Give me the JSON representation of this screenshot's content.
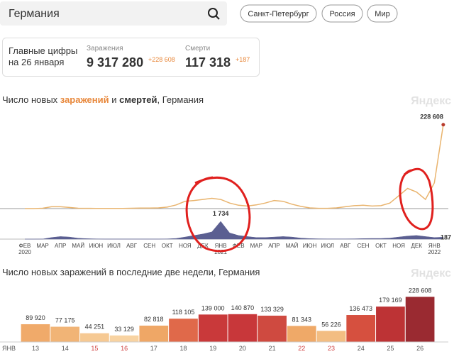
{
  "search": {
    "query": "Германия"
  },
  "regions": [
    "Санкт-Петербург",
    "Россия",
    "Мир"
  ],
  "summary": {
    "title_lines": [
      "Главные цифры",
      "на 26 января"
    ],
    "cases": {
      "label": "Заражения",
      "total": "9 317 280",
      "delta": "+228 608"
    },
    "deaths": {
      "label": "Смерти",
      "total": "117 318",
      "delta": "+187"
    }
  },
  "watermark": "Яндекс",
  "chart_data": [
    {
      "type": "line",
      "title_parts": [
        "Число новых ",
        " и ",
        ", Германия"
      ],
      "categories": [
        "ФЕВ 2020",
        null,
        "МАР",
        null,
        "АПР",
        null,
        "МАЙ",
        null,
        "ИЮН",
        null,
        "ИЮЛ",
        null,
        "АВГ",
        null,
        "СЕН",
        null,
        "ОКТ",
        null,
        "НОЯ",
        null,
        "ДЕК",
        null,
        "ЯНВ 2021",
        null,
        "ФЕВ",
        null,
        "МАР",
        null,
        "АПР",
        null,
        "МАЙ",
        null,
        "ИЮН",
        null,
        "ИЮЛ",
        null,
        "АВГ",
        null,
        "СЕН",
        null,
        "ОКТ",
        null,
        "НОЯ",
        null,
        "ДЕК",
        null,
        "ЯНВ 2022",
        null
      ],
      "ylim": [
        0,
        230000
      ],
      "y2lim": [
        0,
        1800
      ],
      "series": [
        {
          "name": "заражений",
          "color": "#e9b46e",
          "values": [
            0,
            0,
            1000,
            5000,
            5000,
            3000,
            1000,
            700,
            500,
            500,
            400,
            600,
            1000,
            1500,
            1500,
            2000,
            4000,
            10000,
            20000,
            22000,
            25000,
            28000,
            25000,
            15000,
            9000,
            7000,
            10000,
            15000,
            22000,
            20000,
            12000,
            6000,
            2000,
            800,
            800,
            2000,
            5000,
            8000,
            9000,
            7000,
            8000,
            15000,
            35000,
            55000,
            45000,
            25000,
            70000,
            228608
          ],
          "value_labels": [
            null,
            null,
            null,
            null,
            null,
            null,
            null,
            null,
            null,
            null,
            null,
            null,
            null,
            null,
            null,
            null,
            null,
            null,
            null,
            null,
            null,
            null,
            null,
            null,
            null,
            null,
            null,
            null,
            null,
            null,
            null,
            null,
            null,
            null,
            null,
            null,
            null,
            null,
            null,
            null,
            null,
            null,
            null,
            null,
            null,
            null,
            null,
            "228 608"
          ]
        },
        {
          "name": "смертей",
          "color": "#5b5f91",
          "axis": "y2",
          "area": true,
          "values": [
            0,
            0,
            10,
            150,
            250,
            200,
            80,
            40,
            20,
            10,
            5,
            5,
            5,
            5,
            5,
            10,
            20,
            60,
            200,
            350,
            500,
            700,
            1734,
            600,
            350,
            250,
            150,
            150,
            200,
            250,
            200,
            100,
            50,
            30,
            20,
            20,
            20,
            30,
            50,
            60,
            60,
            100,
            200,
            300,
            350,
            250,
            150,
            187
          ],
          "value_labels": [
            null,
            null,
            null,
            null,
            null,
            null,
            null,
            null,
            null,
            null,
            null,
            null,
            null,
            null,
            null,
            null,
            null,
            null,
            null,
            null,
            null,
            null,
            "1 734",
            null,
            null,
            null,
            null,
            null,
            null,
            null,
            null,
            null,
            null,
            null,
            null,
            null,
            null,
            null,
            null,
            null,
            null,
            null,
            null,
            null,
            null,
            null,
            null,
            "187"
          ]
        }
      ]
    },
    {
      "type": "bar",
      "title": "Число новых заражений в последние две недели, Германия",
      "month_label": "ЯНВ",
      "categories": [
        "13",
        "14",
        "15",
        "16",
        "17",
        "18",
        "19",
        "20",
        "21",
        "22",
        "23",
        "24",
        "25",
        "26"
      ],
      "category_colors": [
        "#555",
        "#555",
        "#d04040",
        "#d04040",
        "#555",
        "#555",
        "#555",
        "#555",
        "#555",
        "#d04040",
        "#d04040",
        "#555",
        "#555",
        "#555"
      ],
      "values": [
        89920,
        77175,
        44251,
        33129,
        82818,
        118105,
        139000,
        140870,
        133329,
        81343,
        56226,
        136473,
        179169,
        228608
      ],
      "value_labels": [
        "89 920",
        "77 175",
        "44 251",
        "33 129",
        "82 818",
        "118 105",
        "139 000",
        "140 870",
        "133 329",
        "81 343",
        "56 226",
        "136 473",
        "179 169",
        "228 608"
      ],
      "colors": [
        "#f0aa6a",
        "#f1b476",
        "#f6c993",
        "#f8d3a2",
        "#efa766",
        "#e0694a",
        "#c9393a",
        "#c8373a",
        "#cf4a40",
        "#efa968",
        "#f3bd82",
        "#d6503f",
        "#bd3335",
        "#9a2a31"
      ],
      "ylim": [
        0,
        230000
      ]
    }
  ]
}
